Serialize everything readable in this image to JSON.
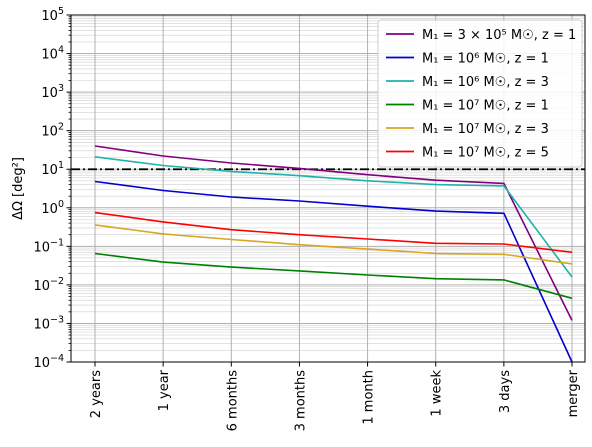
{
  "chart_data": {
    "type": "line",
    "categories": [
      "2 years",
      "1 year",
      "6 months",
      "3 months",
      "1 month",
      "1 week",
      "3 days",
      "merger"
    ],
    "ylabel": "ΔΩ [deg²]",
    "yscale": "log",
    "ylim": [
      0.0001,
      100000
    ],
    "y_ticks": [
      {
        "value": 0.0001,
        "base": "10",
        "exp": "−4"
      },
      {
        "value": 0.001,
        "base": "10",
        "exp": "−3"
      },
      {
        "value": 0.01,
        "base": "10",
        "exp": "−2"
      },
      {
        "value": 0.1,
        "base": "10",
        "exp": "−1"
      },
      {
        "value": 1,
        "base": "10",
        "exp": "0"
      },
      {
        "value": 10,
        "base": "10",
        "exp": "1"
      },
      {
        "value": 100,
        "base": "10",
        "exp": "2"
      },
      {
        "value": 1000,
        "base": "10",
        "exp": "3"
      },
      {
        "value": 10000,
        "base": "10",
        "exp": "4"
      },
      {
        "value": 100000,
        "base": "10",
        "exp": "5"
      }
    ],
    "grid": true,
    "reference_line": {
      "y": 10,
      "style": "dash-dot",
      "color": "#000000"
    },
    "legend_position": "top-right",
    "series": [
      {
        "name": "M₁ = 3 × 10⁵ M☉, z = 1",
        "color": "#800080",
        "values": [
          40,
          22,
          14.5,
          10.5,
          7.2,
          5.2,
          4.3,
          0.0012
        ]
      },
      {
        "name": "M₁ = 10⁶ M☉, z = 1",
        "color": "#0000cd",
        "values": [
          4.8,
          2.8,
          1.9,
          1.5,
          1.1,
          0.82,
          0.72,
          0.0001
        ]
      },
      {
        "name": "M₁ = 10⁶ M☉, z = 3",
        "color": "#20b2aa",
        "values": [
          21,
          12.5,
          8.8,
          6.8,
          5.0,
          4.0,
          3.7,
          0.016
        ]
      },
      {
        "name": "M₁ = 10⁷ M☉, z = 1",
        "color": "#008000",
        "values": [
          0.065,
          0.039,
          0.029,
          0.023,
          0.018,
          0.0145,
          0.0135,
          0.0045
        ]
      },
      {
        "name": "M₁ = 10⁷ M☉, z = 3",
        "color": "#daa520",
        "values": [
          0.36,
          0.21,
          0.15,
          0.11,
          0.085,
          0.065,
          0.062,
          0.035
        ]
      },
      {
        "name": "M₁ = 10⁷ M☉, z = 5",
        "color": "#ff0000",
        "values": [
          0.75,
          0.43,
          0.27,
          0.2,
          0.155,
          0.12,
          0.115,
          0.07
        ]
      }
    ]
  }
}
